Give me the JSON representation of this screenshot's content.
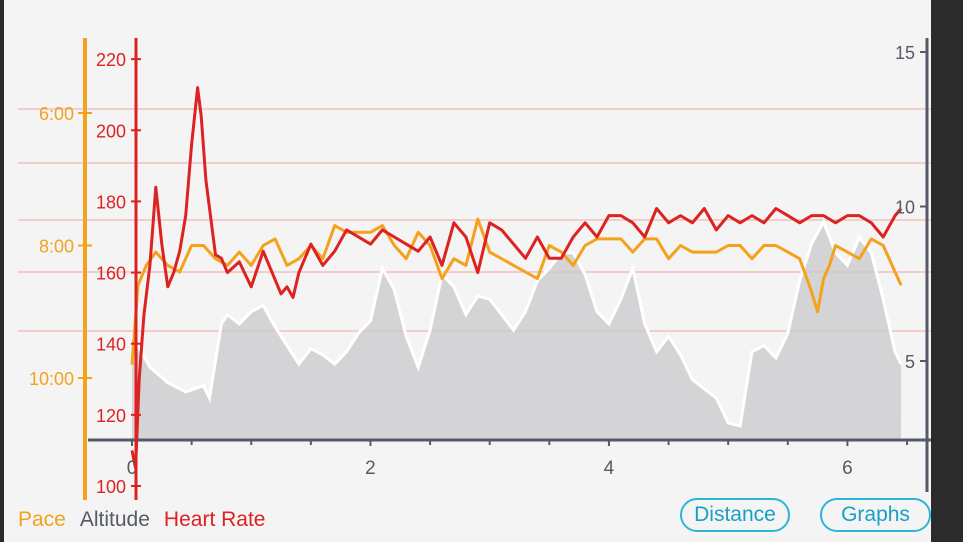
{
  "colors": {
    "pace": "#f4a21c",
    "altitude_line": "#ffffff",
    "altitude_fill": "#c9c9cd",
    "heart_rate": "#dd2222",
    "axis": "#555a66",
    "grid": "#f1a6a0",
    "button": "#2cb6d6"
  },
  "legend": {
    "pace": "Pace",
    "altitude": "Altitude",
    "heart_rate": "Heart Rate"
  },
  "buttons": {
    "distance": "Distance",
    "graphs": "Graphs"
  },
  "chart_data": {
    "type": "line",
    "x_axis": {
      "ticks": [
        "0",
        "2",
        "4",
        "6"
      ],
      "range": [
        0,
        6.55
      ]
    },
    "hr_axis": {
      "ticks": [
        "100",
        "120",
        "140",
        "160",
        "180",
        "200",
        "220"
      ],
      "range": [
        100,
        222
      ]
    },
    "pace_axis": {
      "ticks": [
        "6:00",
        "8:00",
        "10:00"
      ],
      "ticks_min": [
        6,
        8,
        10
      ],
      "range_min": [
        5.2,
        11.7
      ]
    },
    "altitude_axis": {
      "ticks": [
        "5",
        "10",
        "15"
      ],
      "range": [
        2.5,
        15.3
      ]
    },
    "series": [
      {
        "name": "Altitude",
        "x": [
          0,
          0.05,
          0.15,
          0.3,
          0.45,
          0.6,
          0.65,
          0.75,
          0.8,
          0.9,
          1.0,
          1.1,
          1.2,
          1.3,
          1.4,
          1.5,
          1.6,
          1.7,
          1.8,
          1.9,
          2.0,
          2.1,
          2.2,
          2.3,
          2.4,
          2.5,
          2.6,
          2.7,
          2.8,
          2.9,
          3.0,
          3.1,
          3.2,
          3.3,
          3.4,
          3.5,
          3.6,
          3.7,
          3.8,
          3.9,
          4.0,
          4.1,
          4.2,
          4.3,
          4.4,
          4.5,
          4.6,
          4.7,
          4.8,
          4.9,
          5.0,
          5.1,
          5.2,
          5.3,
          5.4,
          5.5,
          5.6,
          5.7,
          5.8,
          5.9,
          6.0,
          6.1,
          6.2,
          6.3,
          6.4,
          6.45
        ],
        "values": [
          5.8,
          5.5,
          4.8,
          4.3,
          4.0,
          4.2,
          3.8,
          6.2,
          6.5,
          6.2,
          6.6,
          6.8,
          6.1,
          5.5,
          4.9,
          5.4,
          5.2,
          4.9,
          5.3,
          5.9,
          6.3,
          8.0,
          7.3,
          5.8,
          4.8,
          6.0,
          7.8,
          7.4,
          6.5,
          7.1,
          7.0,
          6.5,
          6.0,
          6.6,
          7.6,
          8.0,
          8.5,
          8.5,
          7.8,
          6.6,
          6.2,
          7.0,
          8.0,
          6.2,
          5.3,
          5.8,
          5.2,
          4.4,
          4.1,
          3.8,
          3.0,
          2.9,
          5.3,
          5.5,
          5.1,
          5.9,
          7.6,
          8.8,
          9.5,
          8.5,
          8.1,
          9.0,
          8.5,
          7.0,
          5.3,
          4.9
        ]
      },
      {
        "name": "Pace",
        "x": [
          0,
          0.05,
          0.12,
          0.2,
          0.3,
          0.4,
          0.5,
          0.6,
          0.7,
          0.8,
          0.9,
          1.0,
          1.1,
          1.2,
          1.3,
          1.4,
          1.5,
          1.6,
          1.7,
          1.8,
          1.9,
          2.0,
          2.1,
          2.2,
          2.3,
          2.4,
          2.5,
          2.6,
          2.7,
          2.8,
          2.9,
          3.0,
          3.1,
          3.2,
          3.3,
          3.4,
          3.5,
          3.6,
          3.7,
          3.8,
          3.9,
          4.0,
          4.1,
          4.2,
          4.3,
          4.4,
          4.5,
          4.6,
          4.7,
          4.8,
          4.9,
          5.0,
          5.1,
          5.2,
          5.3,
          5.4,
          5.5,
          5.6,
          5.7,
          5.75,
          5.8,
          5.85,
          5.9,
          6.0,
          6.1,
          6.2,
          6.3,
          6.4,
          6.45
        ],
        "values": [
          9.8,
          8.6,
          8.3,
          8.1,
          8.3,
          8.4,
          8.0,
          8.0,
          8.2,
          8.3,
          8.1,
          8.3,
          8.0,
          7.9,
          8.3,
          8.2,
          8.0,
          8.2,
          7.7,
          7.8,
          7.8,
          7.8,
          7.7,
          8.0,
          8.2,
          7.8,
          8.0,
          8.5,
          8.2,
          8.3,
          7.6,
          8.1,
          8.2,
          8.3,
          8.4,
          8.5,
          8.0,
          8.1,
          8.3,
          8.0,
          7.9,
          7.9,
          7.9,
          8.1,
          7.9,
          7.9,
          8.2,
          8.0,
          8.1,
          8.1,
          8.1,
          8.0,
          8.0,
          8.2,
          8.0,
          8.0,
          8.1,
          8.2,
          8.7,
          9.0,
          8.5,
          8.3,
          8.0,
          8.1,
          8.2,
          7.9,
          8.0,
          8.4,
          8.6
        ]
      },
      {
        "name": "Heart Rate",
        "x": [
          0,
          0.03,
          0.06,
          0.1,
          0.15,
          0.2,
          0.25,
          0.3,
          0.35,
          0.4,
          0.45,
          0.5,
          0.55,
          0.58,
          0.62,
          0.7,
          0.75,
          0.8,
          0.9,
          1.0,
          1.1,
          1.2,
          1.25,
          1.3,
          1.35,
          1.4,
          1.5,
          1.6,
          1.7,
          1.8,
          1.9,
          2.0,
          2.1,
          2.2,
          2.3,
          2.4,
          2.5,
          2.6,
          2.7,
          2.8,
          2.9,
          3.0,
          3.1,
          3.2,
          3.3,
          3.4,
          3.5,
          3.6,
          3.7,
          3.8,
          3.9,
          4.0,
          4.1,
          4.2,
          4.3,
          4.4,
          4.5,
          4.6,
          4.7,
          4.8,
          4.9,
          5.0,
          5.1,
          5.2,
          5.3,
          5.4,
          5.5,
          5.6,
          5.7,
          5.8,
          5.9,
          6.0,
          6.1,
          6.2,
          6.3,
          6.4,
          6.45
        ],
        "values": [
          110,
          105,
          130,
          148,
          162,
          184,
          168,
          156,
          160,
          166,
          176,
          196,
          212,
          204,
          186,
          165,
          164,
          160,
          163,
          156,
          166,
          158,
          154,
          156,
          153,
          160,
          168,
          162,
          166,
          172,
          170,
          168,
          172,
          170,
          168,
          166,
          170,
          162,
          174,
          170,
          160,
          174,
          172,
          168,
          164,
          170,
          164,
          164,
          170,
          174,
          170,
          176,
          176,
          174,
          170,
          178,
          174,
          176,
          174,
          178,
          172,
          176,
          174,
          176,
          174,
          178,
          176,
          174,
          176,
          176,
          174,
          176,
          176,
          174,
          170,
          176,
          178
        ]
      }
    ],
    "legend_position": "bottom-left"
  }
}
